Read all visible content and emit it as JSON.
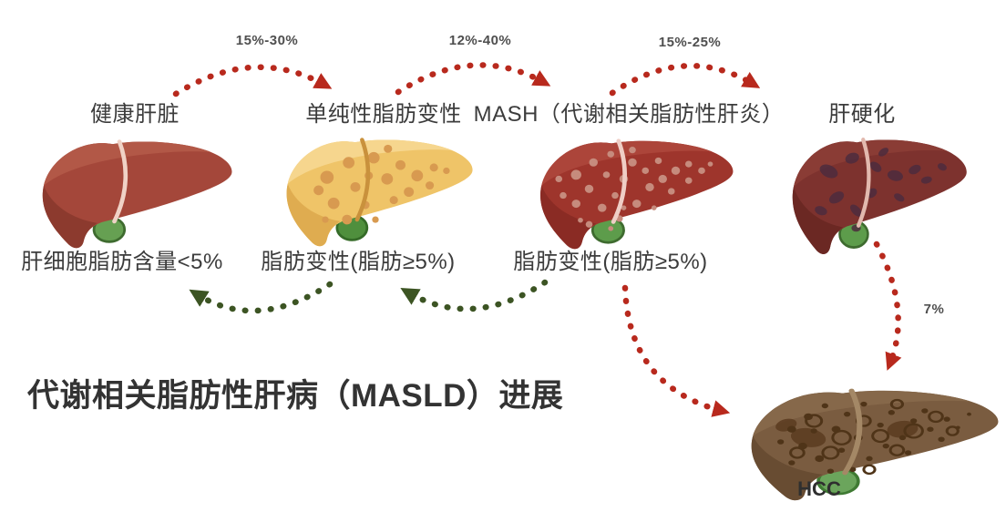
{
  "title": "代谢相关脂肪性肝病（MASLD）进展",
  "stages": [
    {
      "name": "健康肝脏",
      "descriptor": "肝细胞脂肪含量<5%",
      "liver": "healthy"
    },
    {
      "name": "单纯性脂肪变性",
      "descriptor": "脂肪变性(脂肪≥5%)",
      "liver": "steatosis"
    },
    {
      "name": "MASH（代谢相关脂肪性肝炎）",
      "descriptor": "脂肪变性(脂肪≥5%)",
      "liver": "mash"
    },
    {
      "name": "肝硬化",
      "descriptor": "",
      "liver": "cirrhosis"
    },
    {
      "name": "HCC",
      "descriptor": "",
      "liver": "hcc"
    }
  ],
  "progression_rates": [
    {
      "from": "健康肝脏",
      "to": "单纯性脂肪变性",
      "label": "15%-30%"
    },
    {
      "from": "单纯性脂肪变性",
      "to": "MASH",
      "label": "12%-40%"
    },
    {
      "from": "MASH",
      "to": "肝硬化",
      "label": "15%-25%"
    },
    {
      "from": "肝硬化",
      "to": "HCC",
      "label": "7%"
    }
  ],
  "colors": {
    "progression_arrow": "#B8291D",
    "regression_arrow": "#3C5423",
    "label_text": "#3C3C3C",
    "rate_text": "#4F4F4F",
    "title_text": "#333333"
  }
}
